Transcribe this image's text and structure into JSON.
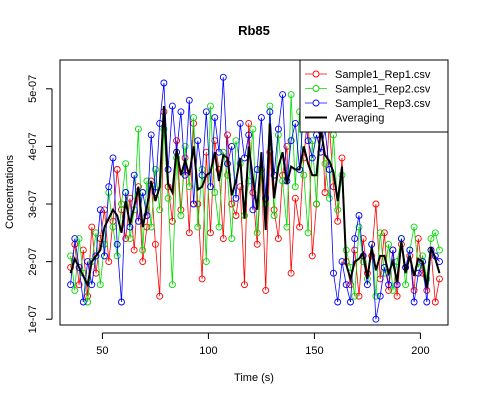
{
  "chart_data": {
    "type": "line",
    "title": "Rb85",
    "xlabel": "Time (s)",
    "ylabel": "Concentrations",
    "xlim": [
      30,
      213
    ],
    "ylim": [
      9e-08,
      5.5e-07
    ],
    "xticks": [
      50,
      100,
      150,
      200
    ],
    "yticks": [
      1e-07,
      2e-07,
      3e-07,
      4e-07,
      5e-07
    ],
    "ytick_labels": [
      "1e-07",
      "2e-07",
      "3e-07",
      "4e-07",
      "5e-07"
    ],
    "legend_position": "top-right",
    "grid": false,
    "x": [
      35,
      37,
      39,
      41,
      43,
      45,
      47,
      49,
      51,
      53,
      55,
      57,
      59,
      61,
      63,
      65,
      67,
      69,
      71,
      73,
      75,
      77,
      79,
      81,
      83,
      85,
      87,
      89,
      91,
      93,
      95,
      97,
      99,
      101,
      103,
      105,
      107,
      109,
      111,
      113,
      115,
      117,
      119,
      121,
      123,
      125,
      127,
      129,
      131,
      133,
      135,
      137,
      139,
      141,
      143,
      145,
      147,
      149,
      151,
      153,
      155,
      157,
      159,
      161,
      163,
      165,
      167,
      169,
      171,
      173,
      175,
      177,
      179,
      181,
      183,
      185,
      187,
      189,
      191,
      193,
      195,
      197,
      199,
      201,
      203,
      205,
      207,
      209
    ],
    "series": [
      {
        "name": "Sample1_Rep1.csv",
        "color": "#ff0000",
        "markers": "open-circle",
        "values": [
          1.9e-07,
          2.3e-07,
          1.6e-07,
          2.2e-07,
          1.4e-07,
          2.6e-07,
          1.8e-07,
          2.4e-07,
          2.9e-07,
          2e-07,
          2.7e-07,
          3.6e-07,
          2.9e-07,
          2.4e-07,
          3.1e-07,
          2.2e-07,
          3.3e-07,
          2e-07,
          2.6e-07,
          3.4e-07,
          2.3e-07,
          1.4e-07,
          4.6e-07,
          3.3e-07,
          2.7e-07,
          4.1e-07,
          2.9e-07,
          3.8e-07,
          2.5e-07,
          4.4e-07,
          3e-07,
          1.7e-07,
          3.9e-07,
          2.5e-07,
          4.1e-07,
          3.6e-07,
          2.4e-07,
          4.2e-07,
          3e-07,
          2.8e-07,
          3.3e-07,
          1.6e-07,
          4.4e-07,
          3.2e-07,
          2.3e-07,
          3.6e-07,
          1.5e-07,
          3.9e-07,
          2.9e-07,
          2.4e-07,
          3.5e-07,
          4e-07,
          1.8e-07,
          3.1e-07,
          2.6e-07,
          3.8e-07,
          4.6e-07,
          2.1e-07,
          3e-07,
          4.9e-07,
          3.2e-07,
          4.4e-07,
          3.3e-07,
          2.7e-07,
          3.8e-07,
          2e-07,
          1.6e-07,
          2.2e-07,
          1.4e-07,
          2.4e-07,
          1.8e-07,
          2.1e-07,
          3e-07,
          1.7e-07,
          2.5e-07,
          1.5e-07,
          2.2e-07,
          1.4e-07,
          2.3e-07,
          1.9e-07,
          2.1e-07,
          1.5e-07,
          2.4e-07,
          1.8e-07,
          1.5e-07,
          2.2e-07,
          1.3e-07,
          1.7e-07
        ]
      },
      {
        "name": "Sample1_Rep2.csv",
        "color": "#00dd00",
        "markers": "open-circle",
        "values": [
          2.1e-07,
          1.5e-07,
          2.4e-07,
          1.8e-07,
          1.3e-07,
          2e-07,
          2.5e-07,
          1.6e-07,
          2.3e-07,
          3.2e-07,
          2.6e-07,
          2.1e-07,
          3e-07,
          3.7e-07,
          2.4e-07,
          2.9e-07,
          4.3e-07,
          2.2e-07,
          3.4e-07,
          2.6e-07,
          3.6e-07,
          2.9e-07,
          4.3e-07,
          3.1e-07,
          1.6e-07,
          3.8e-07,
          2.8e-07,
          4e-07,
          3.3e-07,
          4.5e-07,
          2.6e-07,
          3.6e-07,
          2e-07,
          4.7e-07,
          3.2e-07,
          2.6e-07,
          3.9e-07,
          3.5e-07,
          2.4e-07,
          4.1e-07,
          3.7e-07,
          2.8e-07,
          3.4e-07,
          4.3e-07,
          2.5e-07,
          3.6e-07,
          3e-07,
          4.7e-07,
          2.8e-07,
          4.2e-07,
          3.4e-07,
          2.6e-07,
          4.9e-07,
          3.3e-07,
          4.6e-07,
          3.5e-07,
          2.5e-07,
          4.1e-07,
          3e-07,
          4.5e-07,
          3.7e-07,
          3.1e-07,
          4.2e-07,
          2.9e-07,
          3.5e-07,
          2.2e-07,
          1.9e-07,
          1.4e-07,
          2.6e-07,
          2e-07,
          1.7e-07,
          2.3e-07,
          1.4e-07,
          2.5e-07,
          1.8e-07,
          2.3e-07,
          1.5e-07,
          2e-07,
          2.4e-07,
          1.6e-07,
          2.2e-07,
          2.6e-07,
          1.9e-07,
          2.1e-07,
          1.7e-07,
          2.4e-07,
          2.5e-07,
          2.2e-07
        ]
      },
      {
        "name": "Sample1_Rep3.csv",
        "color": "#0000ff",
        "markers": "open-circle",
        "values": [
          1.6e-07,
          2.4e-07,
          1.9e-07,
          1.3e-07,
          2e-07,
          1.6e-07,
          2.1e-07,
          2.9e-07,
          2.1e-07,
          3.3e-07,
          3.8e-07,
          2.3e-07,
          1.3e-07,
          3.2e-07,
          2.6e-07,
          3.5e-07,
          2.7e-07,
          3.2e-07,
          2.8e-07,
          4.2e-07,
          3.2e-07,
          4.4e-07,
          5.1e-07,
          3.6e-07,
          4.7e-07,
          3.9e-07,
          4.6e-07,
          3.5e-07,
          4.8e-07,
          3e-07,
          4.1e-07,
          3.5e-07,
          4.6e-07,
          3.3e-07,
          4.5e-07,
          3.9e-07,
          5.2e-07,
          3.7e-07,
          4e-07,
          3.1e-07,
          4.4e-07,
          3.8e-07,
          4.2e-07,
          2.9e-07,
          3.6e-07,
          4.5e-07,
          3.1e-07,
          4.6e-07,
          3.5e-07,
          4.3e-07,
          4.9e-07,
          3.4e-07,
          4.1e-07,
          4.4e-07,
          3.6e-07,
          4.7e-07,
          4.1e-07,
          3.8e-07,
          4.2e-07,
          3.9e-07,
          4.3e-07,
          3.6e-07,
          1.8e-07,
          1.3e-07,
          2e-07,
          1.6e-07,
          1.3e-07,
          2.4e-07,
          2.8e-07,
          2.1e-07,
          1.6e-07,
          2.3e-07,
          1e-07,
          1.4e-07,
          1.9e-07,
          1.6e-07,
          2.2e-07,
          1.6e-07,
          2.4e-07,
          1.9e-07,
          2.2e-07,
          1.3e-07,
          1.8e-07,
          2e-07,
          1.3e-07,
          2.2e-07,
          2.1e-07,
          2e-07
        ]
      },
      {
        "name": "Averaging",
        "color": "#000000",
        "markers": "none",
        "values": [
          1.8e-07,
          2.05e-07,
          1.9e-07,
          1.75e-07,
          1.6e-07,
          2e-07,
          2.1e-07,
          2.2e-07,
          2.6e-07,
          2.75e-07,
          2.9e-07,
          2.8e-07,
          2.5e-07,
          3.05e-07,
          2.65e-07,
          2.95e-07,
          3.3e-07,
          2.6e-07,
          2.95e-07,
          3.4e-07,
          3.05e-07,
          3.3e-07,
          4.7e-07,
          3.35e-07,
          3.2e-07,
          3.95e-07,
          3.5e-07,
          3.75e-07,
          3.5e-07,
          4e-07,
          3.25e-07,
          3.3e-07,
          3.5e-07,
          3.55e-07,
          3.9e-07,
          3.4e-07,
          3.85e-07,
          3.8e-07,
          3.15e-07,
          3.4e-07,
          3.8e-07,
          2.75e-07,
          4e-07,
          3.45e-07,
          2.9e-07,
          3.9e-07,
          2.55e-07,
          4.4e-07,
          3.1e-07,
          3.65e-07,
          3.9e-07,
          3.35e-07,
          3.65e-07,
          3.6e-07,
          3.6e-07,
          4e-07,
          3.7e-07,
          3.5e-07,
          3.5e-07,
          4.3e-07,
          3.85e-07,
          3.75e-07,
          3.55e-07,
          3.05e-07,
          3.65e-07,
          1.95e-07,
          1.7e-07,
          2e-07,
          2.05e-07,
          2.15e-07,
          1.7e-07,
          2.25e-07,
          1.85e-07,
          2.1e-07,
          2.1e-07,
          1.8e-07,
          2e-07,
          1.65e-07,
          2.35e-07,
          1.8e-07,
          2.1e-07,
          1.75e-07,
          2.05e-07,
          2e-07,
          1.55e-07,
          2.25e-07,
          2.05e-07,
          1.8e-07
        ]
      }
    ]
  }
}
